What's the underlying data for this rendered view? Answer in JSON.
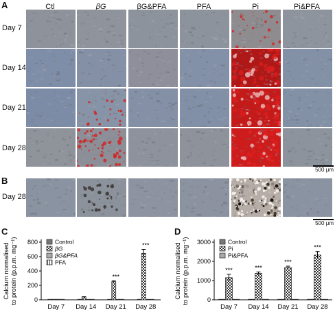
{
  "panel_a": {
    "letter": "A",
    "columns": [
      "Ctl",
      "βG",
      "βG&PFA",
      "PFA",
      "Pi",
      "Pi&PFA"
    ],
    "rows": [
      "Day 7",
      "Day 14",
      "Day 21",
      "Day 28"
    ],
    "scale_bar": "500 μm"
  },
  "panel_b": {
    "letter": "B",
    "rows": [
      "Day 28"
    ],
    "scale_bar": "500 μm"
  },
  "chart_data": [
    {
      "panel": "C",
      "type": "bar",
      "ylabel_line1": "Calcium normalised",
      "ylabel_line2": "to protein (p.p.m. mg⁻¹)",
      "categories": [
        "Day 7",
        "Day 14",
        "Day 21",
        "Day 28"
      ],
      "ylim": [
        0,
        800
      ],
      "yticks": [
        "0",
        "200",
        "400",
        "600",
        "800"
      ],
      "series": [
        {
          "name": "Control",
          "values": [
            2,
            3,
            3,
            3
          ],
          "errors": [
            0,
            0,
            0,
            0
          ]
        },
        {
          "name": "βG",
          "values": [
            8,
            38,
            252,
            645
          ],
          "errors": [
            0,
            5,
            12,
            55
          ]
        },
        {
          "name": "βG&PFA",
          "values": [
            1,
            1,
            1,
            1
          ],
          "errors": [
            0,
            0,
            0,
            0
          ]
        },
        {
          "name": "PFA",
          "values": [
            1,
            1,
            1,
            1
          ],
          "errors": [
            0,
            0,
            0,
            0
          ]
        }
      ],
      "annotations": [
        {
          "category": "Day 21",
          "text": "***"
        },
        {
          "category": "Day 28",
          "text": "***"
        }
      ],
      "legend": "top-left"
    },
    {
      "panel": "D",
      "type": "bar",
      "ylabel_line1": "Calcium normalised",
      "ylabel_line2": "to protein (p.p.m. mg⁻¹)",
      "categories": [
        "Day 7",
        "Day 14",
        "Day 21",
        "Day 28"
      ],
      "ylim": [
        0,
        3000
      ],
      "yticks": [
        "0",
        "1000",
        "2000",
        "3000"
      ],
      "series": [
        {
          "name": "Control",
          "values": [
            8,
            8,
            8,
            8
          ],
          "errors": [
            0,
            0,
            0,
            0
          ]
        },
        {
          "name": "Pi",
          "values": [
            1150,
            1380,
            1680,
            2330
          ],
          "errors": [
            180,
            70,
            70,
            180
          ]
        },
        {
          "name": "Pi&PFA",
          "values": [
            8,
            8,
            8,
            8
          ],
          "errors": [
            0,
            0,
            0,
            0
          ]
        }
      ],
      "annotations": [
        {
          "category": "Day 7",
          "text": "***"
        },
        {
          "category": "Day 14",
          "text": "***"
        },
        {
          "category": "Day 21",
          "text": "***"
        },
        {
          "category": "Day 28",
          "text": "***"
        }
      ],
      "legend": "top-left"
    }
  ],
  "colors": {
    "tile_base": "#8a94a2",
    "tile_blue": "#7f8ea6",
    "stain_red": "#d42020",
    "dark_stain": "#3a3633",
    "bar_fill": "#777777"
  }
}
